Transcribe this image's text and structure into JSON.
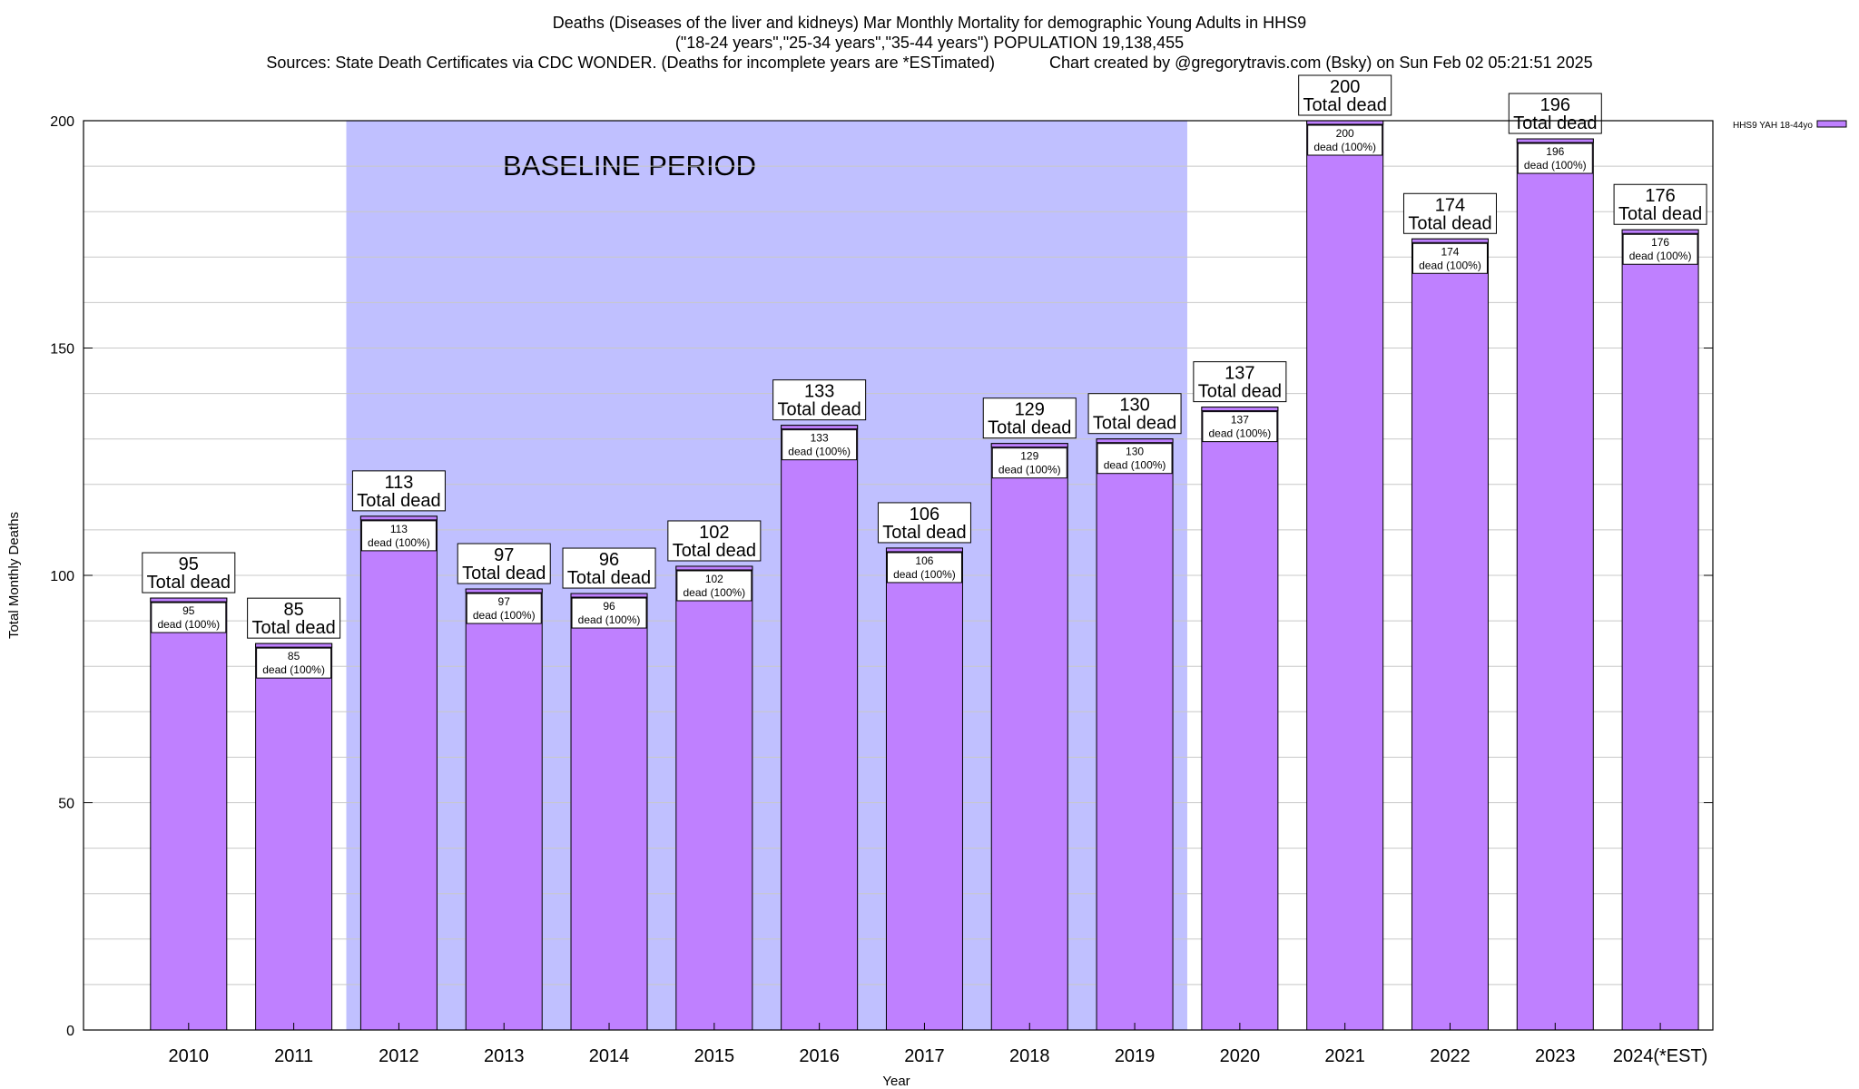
{
  "chart_data": {
    "type": "bar",
    "title_lines": [
      "Deaths (Diseases of the liver and kidneys) Mar Monthly Mortality for demographic Young Adults in HHS9",
      "(\"18-24 years\",\"25-34 years\",\"35-44 years\") POPULATION 19,138,455"
    ],
    "source_text": "Sources: State Death Certificates via CDC WONDER. (Deaths for incomplete years are *ESTimated)",
    "credit_text": "Chart created by @gregorytravis.com (Bsky) on Sun Feb 02 05:21:51 2025",
    "xlabel": "Year",
    "ylabel": "Total Monthly Deaths",
    "ylim": [
      0,
      200
    ],
    "y_ticks": [
      0,
      50,
      100,
      150,
      200
    ],
    "y_minor_step": 10,
    "grid": true,
    "legend": {
      "label": "HHS9 YAH 18-44yo",
      "placement": "top-right"
    },
    "series_color": "#bf80ff",
    "baseline": {
      "label": "BASELINE PERIOD",
      "from": "2012",
      "to": "2019",
      "color": "#c0c0ff"
    },
    "categories": [
      "2010",
      "2011",
      "2012",
      "2013",
      "2014",
      "2015",
      "2016",
      "2017",
      "2018",
      "2019",
      "2020",
      "2021",
      "2022",
      "2023",
      "2024(*EST)"
    ],
    "values": [
      95,
      85,
      113,
      97,
      96,
      102,
      133,
      106,
      129,
      130,
      137,
      200,
      174,
      196,
      176
    ],
    "outer_label_suffix": "Total dead",
    "inner_label_suffix": "dead (100%)"
  }
}
